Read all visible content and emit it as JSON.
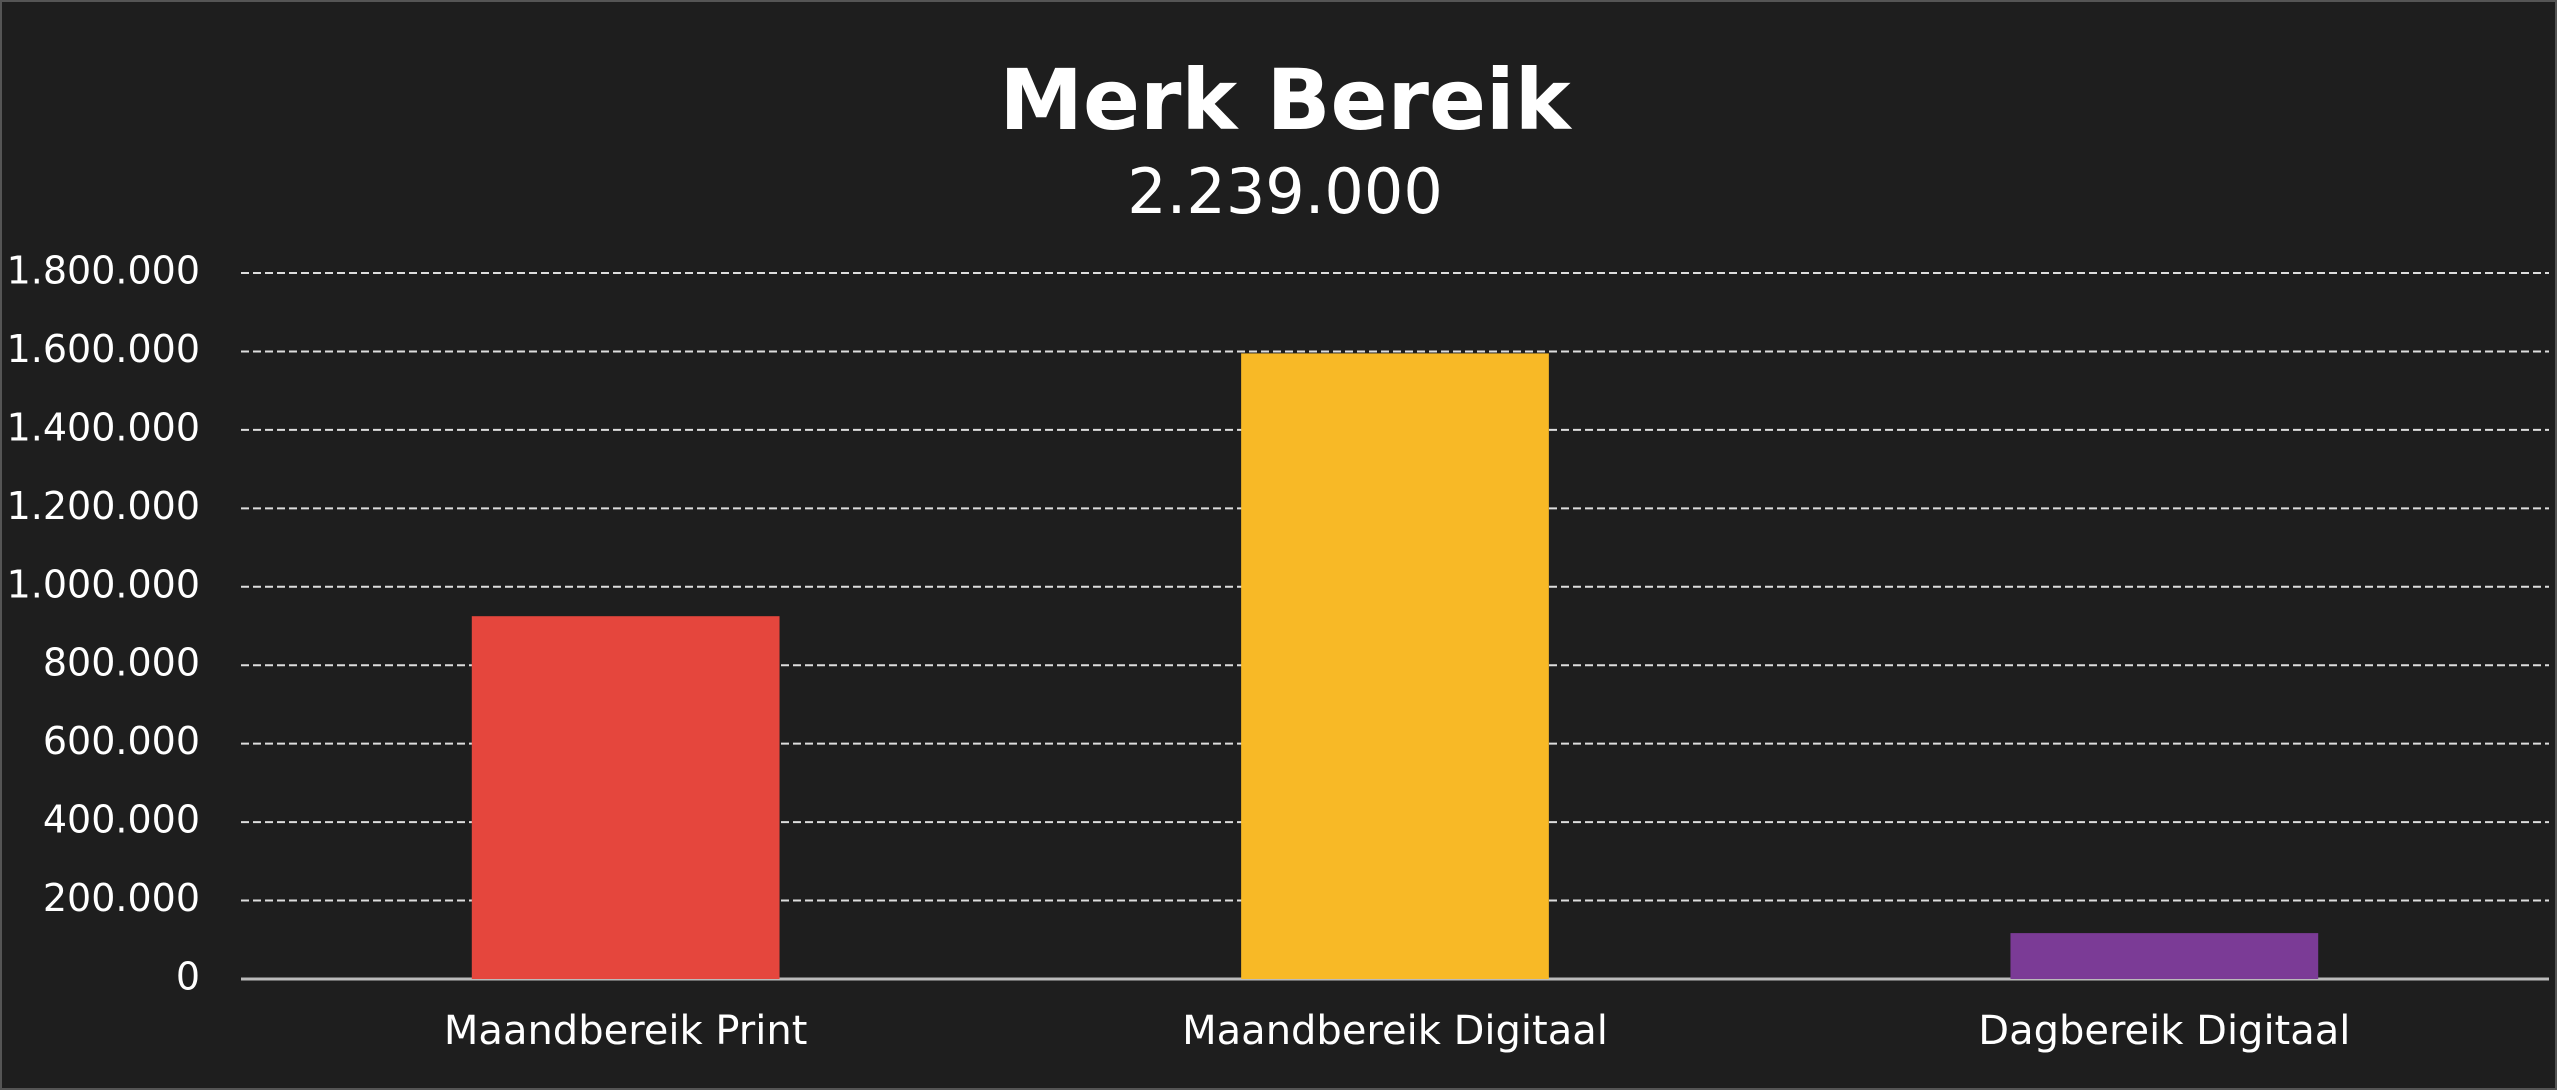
{
  "chart_data": {
    "type": "bar",
    "title": "Merk Bereik",
    "subtitle": "2.239.000",
    "categories": [
      "Maandbereik Print",
      "Maandbereik Digitaal",
      "Dagbereik Digitaal"
    ],
    "values": [
      925000,
      1595000,
      117000
    ],
    "colors": [
      "#e5463d",
      "#f8b926",
      "#7b3b96"
    ],
    "ylim": [
      0,
      1800000
    ],
    "yticks": [
      0,
      {
        "value": 200000,
        "label": "200.000"
      },
      {
        "value": 400000,
        "label": "400.000"
      },
      {
        "value": 600000,
        "label": "600.000"
      },
      {
        "value": 800000,
        "label": "800.000"
      },
      {
        "value": 1000000,
        "label": "1.000.000"
      },
      {
        "value": 1200000,
        "label": "1.200.000"
      },
      {
        "value": 1400000,
        "label": "1.400.000"
      },
      {
        "value": 1600000,
        "label": "1.600.000"
      },
      {
        "value": 1800000,
        "label": "1.800.000"
      }
    ],
    "grid": true
  }
}
